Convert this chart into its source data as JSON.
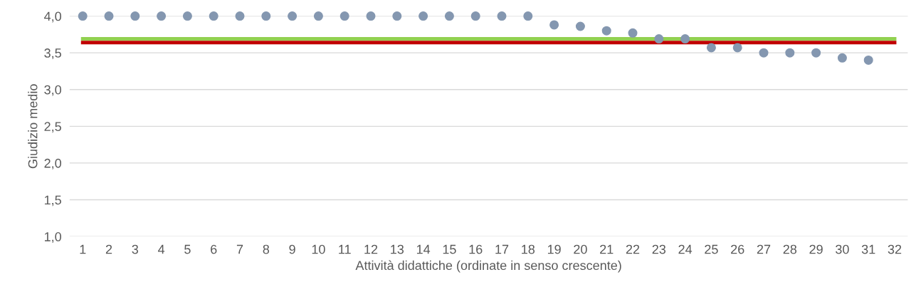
{
  "chart_data": {
    "type": "scatter",
    "xlabel": "Attività didattiche (ordinate in senso crescente)",
    "ylabel": "Giudizio medio",
    "categories": [
      "1",
      "2",
      "3",
      "4",
      "5",
      "6",
      "7",
      "8",
      "9",
      "10",
      "11",
      "12",
      "13",
      "14",
      "15",
      "16",
      "17",
      "18",
      "19",
      "20",
      "21",
      "22",
      "23",
      "24",
      "25",
      "26",
      "27",
      "28",
      "29",
      "30",
      "31",
      "32"
    ],
    "series": [
      {
        "color": "#8497b0",
        "marker": "circle",
        "values": [
          4.0,
          4.0,
          4.0,
          4.0,
          4.0,
          4.0,
          4.0,
          4.0,
          4.0,
          4.0,
          4.0,
          4.0,
          4.0,
          4.0,
          4.0,
          4.0,
          4.0,
          4.0,
          3.88,
          3.86,
          3.8,
          3.77,
          3.69,
          3.69,
          3.57,
          3.57,
          3.5,
          3.5,
          3.5,
          3.43,
          3.4,
          null
        ]
      },
      {
        "type": "line",
        "marker": "none",
        "color": "#92d050",
        "values": [
          3.69,
          3.69,
          3.69,
          3.69,
          3.69,
          3.69,
          3.69,
          3.69,
          3.69,
          3.69,
          3.69,
          3.69,
          3.69,
          3.69,
          3.69,
          3.69,
          3.69,
          3.69,
          3.69,
          3.69,
          3.69,
          3.69,
          3.69,
          3.69,
          3.69,
          3.69,
          3.69,
          3.69,
          3.69,
          3.69,
          3.69,
          3.69
        ]
      },
      {
        "type": "line",
        "marker": "none",
        "color": "#c00000",
        "values": [
          3.64,
          3.64,
          3.64,
          3.64,
          3.64,
          3.64,
          3.64,
          3.64,
          3.64,
          3.64,
          3.64,
          3.64,
          3.64,
          3.64,
          3.64,
          3.64,
          3.64,
          3.64,
          3.64,
          3.64,
          3.64,
          3.64,
          3.64,
          3.64,
          3.64,
          3.64,
          3.64,
          3.64,
          3.64,
          3.64,
          3.64,
          3.64
        ]
      }
    ],
    "ylim": [
      1.0,
      4.0
    ],
    "yticks": [
      {
        "value": 1.0,
        "label": "1,0"
      },
      {
        "value": 1.5,
        "label": "1,5"
      },
      {
        "value": 2.0,
        "label": "2,0"
      },
      {
        "value": 2.5,
        "label": "2,5"
      },
      {
        "value": 3.0,
        "label": "3,0"
      },
      {
        "value": 3.5,
        "label": "3,5"
      },
      {
        "value": 4.0,
        "label": "4,0"
      }
    ],
    "grid": "y",
    "line_style": "solid",
    "legend": false
  }
}
